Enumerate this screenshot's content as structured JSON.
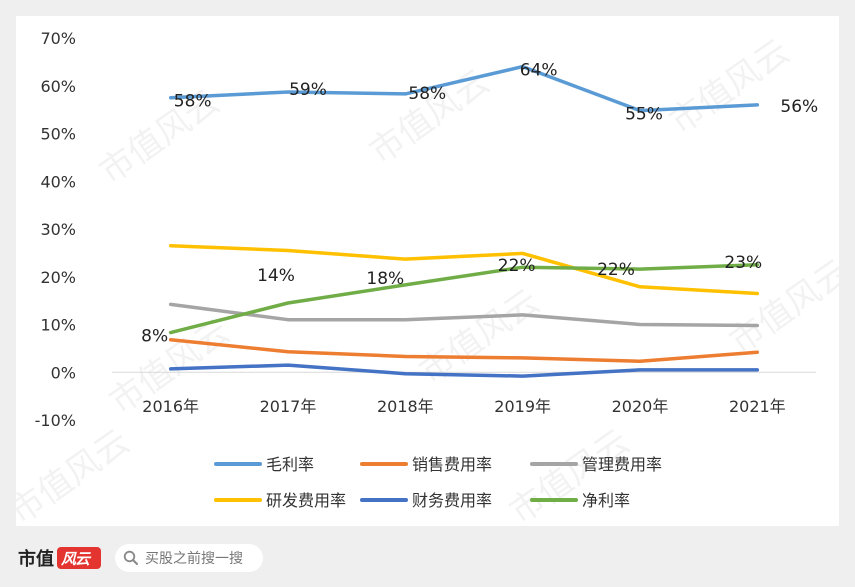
{
  "chart_data": {
    "type": "line",
    "categories": [
      "2016年",
      "2017年",
      "2018年",
      "2019年",
      "2020年",
      "2021年"
    ],
    "ylim": [
      -10,
      70
    ],
    "yticks": [
      -10,
      0,
      10,
      20,
      30,
      40,
      50,
      60,
      70
    ],
    "y_tick_labels": [
      "-10%",
      "0%",
      "10%",
      "20%",
      "30%",
      "40%",
      "50%",
      "60%",
      "70%"
    ],
    "grid": false,
    "legend_position": "bottom",
    "series": [
      {
        "name": "毛利率",
        "color": "#5b9bd5",
        "values": [
          57.5,
          58.7,
          58.3,
          64.0,
          54.8,
          56.0
        ],
        "labels": [
          "58%",
          "59%",
          "58%",
          "64%",
          "55%",
          "56%"
        ]
      },
      {
        "name": "销售费用率",
        "color": "#ed7d31",
        "values": [
          6.8,
          4.3,
          3.3,
          3.0,
          2.3,
          4.2
        ],
        "labels": []
      },
      {
        "name": "管理费用率",
        "color": "#a5a5a5",
        "values": [
          14.2,
          11.0,
          11.0,
          12.0,
          10.0,
          9.8
        ],
        "labels": []
      },
      {
        "name": "研发费用率",
        "color": "#ffc000",
        "values": [
          26.5,
          25.5,
          23.7,
          24.9,
          17.9,
          16.5
        ],
        "labels": []
      },
      {
        "name": "财务费用率",
        "color": "#4472c4",
        "values": [
          0.7,
          1.5,
          -0.3,
          -0.8,
          0.5,
          0.5
        ],
        "labels": []
      },
      {
        "name": "净利率",
        "color": "#70ad47",
        "values": [
          8.3,
          14.5,
          18.3,
          22.0,
          21.6,
          22.5
        ],
        "labels": [
          "8%",
          "14%",
          "18%",
          "22%",
          "22%",
          "23%"
        ]
      }
    ]
  },
  "watermark": "市值风云",
  "footer": {
    "brand": "市值",
    "logo_text": "风云",
    "search_placeholder": "买股之前搜一搜",
    "search_icon": "search-icon"
  }
}
